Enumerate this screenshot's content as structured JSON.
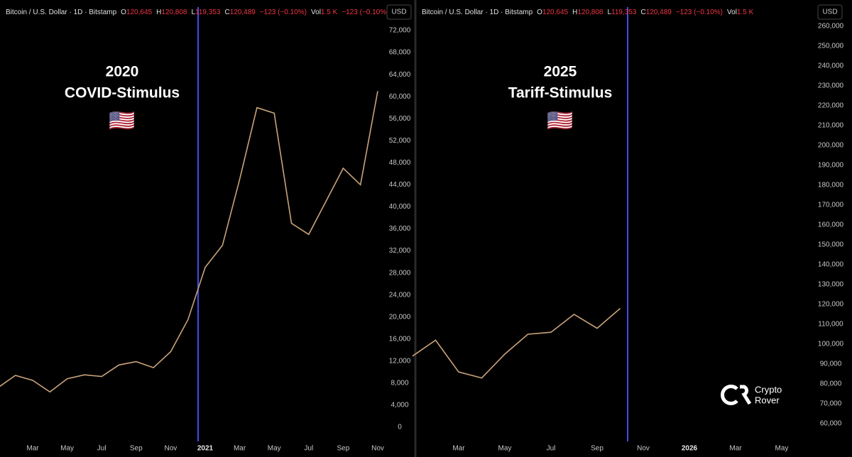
{
  "chart_data": [
    {
      "type": "line",
      "header": {
        "symbol": "Bitcoin / U.S. Dollar · 1D · Bitstamp",
        "o_key": "O",
        "o": "120,645",
        "h_key": "H",
        "h": "120,808",
        "l_key": "L",
        "l": "119,353",
        "c_key": "C",
        "c": "120,489",
        "change": "−123 (−0.10%)",
        "vol_key": "Vol",
        "vol": "1.5 K",
        "change2": "−123 (−0.10%)"
      },
      "currency": "USD",
      "annotation": {
        "year": "2020",
        "label": "COVID-Stimulus",
        "flag": "🇺🇸"
      },
      "categories": [
        null,
        null,
        "Mar",
        null,
        "May",
        null,
        "Jul",
        null,
        "Sep",
        null,
        "Nov",
        null,
        "2021",
        null,
        "Mar",
        null,
        "May",
        null,
        "Jul",
        null,
        "Sep",
        null,
        "Nov"
      ],
      "series": [
        {
          "name": "BTCUSD",
          "color": "#c9a37a",
          "values": [
            7200,
            9400,
            8500,
            6400,
            8800,
            9500,
            9200,
            11300,
            11900,
            10800,
            13700,
            19500,
            29000,
            33000,
            45000,
            58000,
            57000,
            37000,
            35000,
            41000,
            47000,
            44000,
            61000
          ]
        }
      ],
      "ylim": [
        0,
        72000
      ],
      "yticks": [
        0,
        {
          "value": 4000,
          "label": "4,000"
        },
        {
          "value": 8000,
          "label": "8,000"
        },
        {
          "value": 12000,
          "label": "12,000"
        },
        {
          "value": 16000,
          "label": "16,000"
        },
        {
          "value": 20000,
          "label": "20,000"
        },
        {
          "value": 24000,
          "label": "24,000"
        },
        {
          "value": 28000,
          "label": "28,000"
        },
        {
          "value": 32000,
          "label": "32,000"
        },
        {
          "value": 36000,
          "label": "36,000"
        },
        {
          "value": 40000,
          "label": "40,000"
        },
        {
          "value": 44000,
          "label": "44,000"
        },
        {
          "value": 48000,
          "label": "48,000"
        },
        {
          "value": 52000,
          "label": "52,000"
        },
        {
          "value": 56000,
          "label": "56,000"
        },
        {
          "value": 60000,
          "label": "60,000"
        },
        {
          "value": 64000,
          "label": "64,000"
        },
        {
          "value": 68000,
          "label": "68,000"
        },
        {
          "value": 72000,
          "label": "72,000"
        }
      ]
    },
    {
      "type": "line",
      "header": {
        "symbol": "Bitcoin / U.S. Dollar · 1D · Bitstamp",
        "o_key": "O",
        "o": "120,645",
        "h_key": "H",
        "h": "120,808",
        "l_key": "L",
        "l": "119,353",
        "c_key": "C",
        "c": "120,489",
        "change": "−123 (−0.10%)",
        "vol_key": "Vol",
        "vol": "1.5 K"
      },
      "currency": "USD",
      "annotation": {
        "year": "2025",
        "label": "Tariff-Stimulus",
        "flag": "🇺🇸"
      },
      "logo": [
        "Crypto",
        "Rover"
      ],
      "categories": [
        null,
        null,
        "Mar",
        null,
        "May",
        null,
        "Jul",
        null,
        "Sep",
        null,
        "Nov",
        null,
        "2026",
        null,
        "Mar",
        null,
        "May"
      ],
      "series": [
        {
          "name": "BTCUSD",
          "color": "#c9a37a",
          "values": [
            94000,
            102000,
            86000,
            83000,
            95000,
            105000,
            106000,
            115000,
            108000,
            118000,
            null,
            null,
            null,
            null,
            null,
            null,
            null
          ]
        }
      ],
      "ylim": [
        60000,
        260000
      ],
      "yticks": [
        {
          "value": 60000,
          "label": "60,000"
        },
        {
          "value": 70000,
          "label": "70,000"
        },
        {
          "value": 80000,
          "label": "80,000"
        },
        {
          "value": 90000,
          "label": "90,000"
        },
        {
          "value": 100000,
          "label": "100,000"
        },
        {
          "value": 110000,
          "label": "110,000"
        },
        {
          "value": 120000,
          "label": "120,000"
        },
        {
          "value": 130000,
          "label": "130,000"
        },
        {
          "value": 140000,
          "label": "140,000"
        },
        {
          "value": 150000,
          "label": "150,000"
        },
        {
          "value": 160000,
          "label": "160,000"
        },
        {
          "value": 170000,
          "label": "170,000"
        },
        {
          "value": 180000,
          "label": "180,000"
        },
        {
          "value": 190000,
          "label": "190,000"
        },
        {
          "value": 200000,
          "label": "200,000"
        },
        {
          "value": 210000,
          "label": "210,000"
        },
        {
          "value": 220000,
          "label": "220,000"
        },
        {
          "value": 230000,
          "label": "230,000"
        },
        {
          "value": 240000,
          "label": "240,000"
        },
        {
          "value": 250000,
          "label": "250,000"
        },
        {
          "value": 260000,
          "label": "260,000"
        }
      ]
    }
  ]
}
